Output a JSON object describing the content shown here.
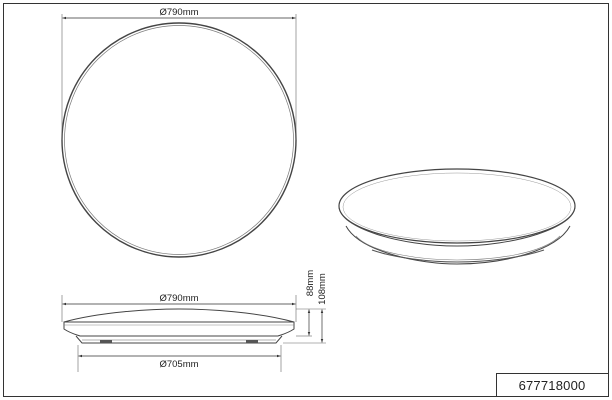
{
  "drawing": {
    "top_view": {
      "diameter_label": "Ø790mm"
    },
    "side_view": {
      "top_diameter_label": "Ø790mm",
      "base_diameter_label": "Ø705mm",
      "height_inner_label": "88mm",
      "height_total_label": "108mm"
    },
    "title_block": {
      "article_number": "677718000"
    }
  }
}
